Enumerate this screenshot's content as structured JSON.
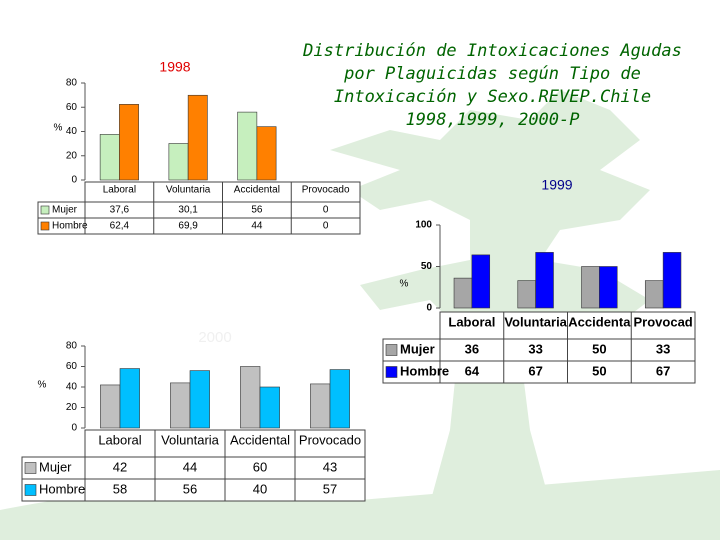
{
  "title": "Distribución de Intoxicaciones Agudas por Plaguicidas según Tipo de Intoxicación y Sexo.REVEP.Chile 1998,1999, 2000-P",
  "chart_data": [
    {
      "type": "bar",
      "title": "1998",
      "y_label": "%",
      "categories": [
        "Laboral",
        "Voluntaria",
        "Accidental",
        "Provocado"
      ],
      "series": [
        {
          "name": "Mujer",
          "color": "#c6efbe",
          "values": [
            37.6,
            30.1,
            56,
            0
          ],
          "value_labels": [
            "37,6",
            "30,1",
            "56",
            "0"
          ]
        },
        {
          "name": "Hombre",
          "color": "#ff8000",
          "values": [
            62.4,
            69.9,
            44,
            0
          ],
          "value_labels": [
            "62,4",
            "69,9",
            "44",
            "0"
          ]
        }
      ],
      "ylim": [
        0,
        80
      ],
      "yticks": [
        0,
        20,
        40,
        60,
        80
      ]
    },
    {
      "type": "bar",
      "title": "1999",
      "y_label": "%",
      "categories": [
        "Laboral",
        "Voluntaria",
        "Accidenta",
        "Provocad"
      ],
      "series": [
        {
          "name": "Mujer",
          "color": "#a6a6a6",
          "values": [
            36,
            33,
            50,
            33
          ]
        },
        {
          "name": "Hombre",
          "color": "#0000ff",
          "values": [
            64,
            67,
            50,
            67
          ]
        }
      ],
      "ylim": [
        0,
        100
      ],
      "yticks": [
        0,
        50,
        100
      ]
    },
    {
      "type": "bar",
      "title": "2000",
      "y_label": "%",
      "categories": [
        "Laboral",
        "Voluntaria",
        "Accidental",
        "Provocado"
      ],
      "series": [
        {
          "name": "Mujer",
          "color": "#c0c0c0",
          "values": [
            42,
            44,
            60,
            43
          ]
        },
        {
          "name": "Hombre",
          "color": "#00bfff",
          "values": [
            58,
            56,
            40,
            57
          ]
        }
      ],
      "ylim": [
        0,
        80
      ],
      "yticks": [
        0,
        20,
        40,
        60,
        80
      ]
    }
  ]
}
